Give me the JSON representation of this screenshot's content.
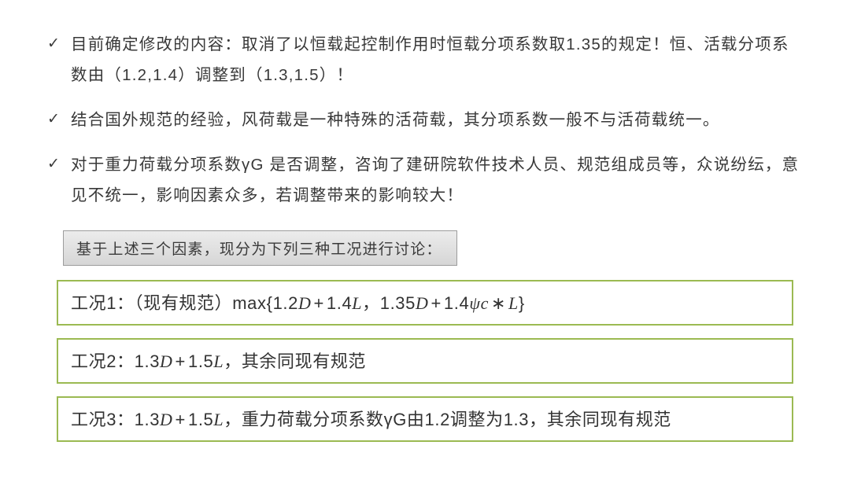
{
  "bullets": [
    "目前确定修改的内容：取消了以恒载起控制作用时恒载分项系数取1.35的规定！恒、活载分项系数由（1.2,1.4）调整到（1.3,1.5）！",
    "结合国外规范的经验，风荷载是一种特殊的活荷载，其分项系数一般不与活荷载统一。",
    "对于重力荷载分项系数γG 是否调整，咨询了建研院软件技术人员、规范组成员等，众说纷纭，意见不统一，影响因素众多，若调整带来的影响较大！"
  ],
  "section_header": "基于上述三个因素，现分为下列三种工况进行讨论：",
  "cases": [
    {
      "prefix": "工况1：（现有规范）",
      "suffix": "",
      "formula_html": "max{<span class='num'>1.2</span><span class='math'>D</span><span class='op'>+</span><span class='num'>1.4</span><span class='math'>L</span>，<span class='num'>1.35</span><span class='math'>D</span><span class='op'>+</span><span class='num'>1.4</span><span class='math'>ψc</span><span class='op'>∗</span><span class='math'>L</span>}"
    },
    {
      "prefix": "工况2：",
      "suffix": "，其余同现有规范",
      "formula_html": "<span class='num'>1.3</span><span class='math'>D</span><span class='op'>+</span><span class='num'>1.5</span><span class='math'>L</span>"
    },
    {
      "prefix": "工况3：",
      "suffix": "，重力荷载分项系数γG由1.2调整为1.3，其余同现有规范",
      "formula_html": "<span class='num'>1.3</span><span class='math'>D</span><span class='op'>+</span><span class='num'>1.5</span><span class='math'>L</span>"
    }
  ],
  "case_border_color": "#9bba52",
  "text_color": "#383838"
}
